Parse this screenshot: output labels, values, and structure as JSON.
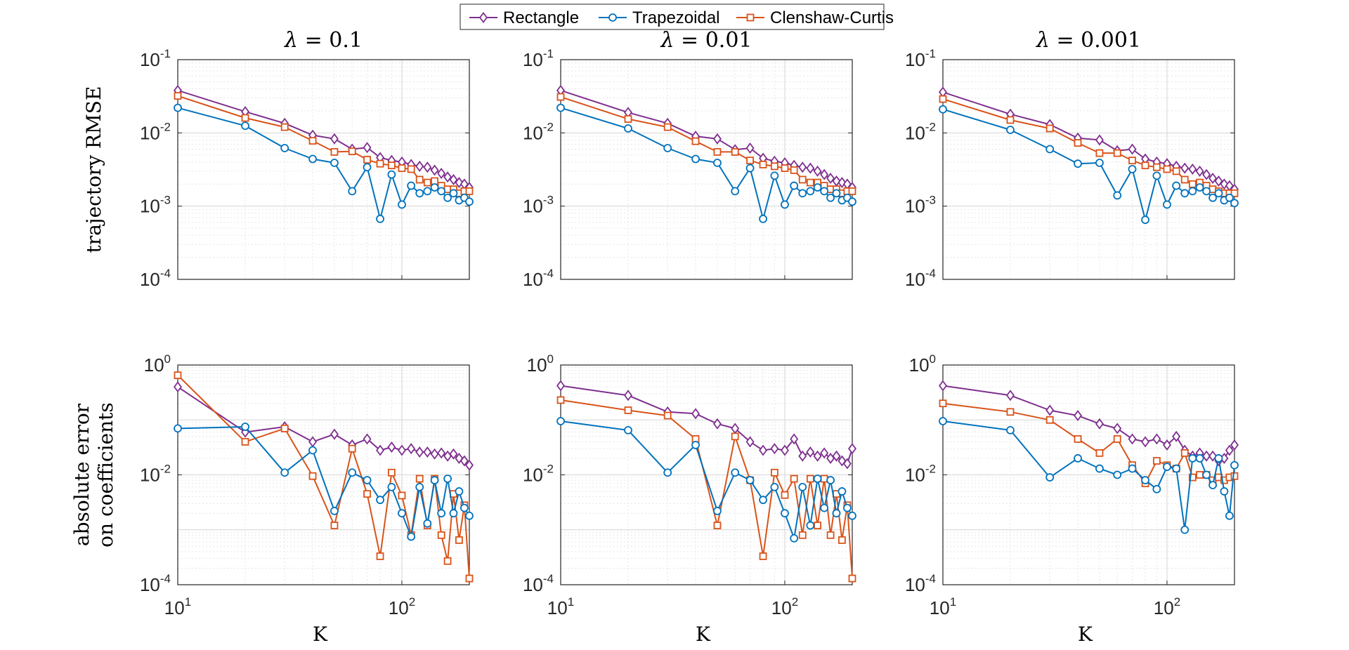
{
  "legend": {
    "entries": [
      {
        "name": "Rectangle",
        "color": "#7E2F8E",
        "marker": "diamond"
      },
      {
        "name": "Trapezoidal",
        "color": "#0072BD",
        "marker": "circle"
      },
      {
        "name": "Clenshaw-Curtis",
        "color": "#D95319",
        "marker": "square"
      }
    ]
  },
  "chart_data": [
    {
      "type": "line",
      "scale": "loglog",
      "title_var": "λ",
      "title_rest": " = 0.1",
      "ylabel_lines": [
        "trajectory RMSE"
      ],
      "xlabel": "",
      "ylim": [
        0.0001,
        0.1
      ],
      "yticks": [
        {
          "base": "10",
          "exp": "-1",
          "v": 0.1
        },
        {
          "base": "10",
          "exp": "-2",
          "v": 0.01
        },
        {
          "base": "10",
          "exp": "-3",
          "v": 0.001
        },
        {
          "base": "10",
          "exp": "-4",
          "v": 0.0001
        }
      ],
      "xticks": [],
      "x": [
        10,
        20,
        30,
        40,
        50,
        60,
        70,
        80,
        90,
        100,
        110,
        120,
        130,
        140,
        150,
        160,
        170,
        180,
        190,
        200
      ],
      "series": [
        {
          "name": "Rectangle",
          "values": [
            0.038,
            0.0195,
            0.0135,
            0.0093,
            0.0083,
            0.006,
            0.0063,
            0.0046,
            0.0042,
            0.004,
            0.0037,
            0.0035,
            0.0034,
            0.0031,
            0.0028,
            0.0025,
            0.0023,
            0.0021,
            0.002,
            0.0018
          ]
        },
        {
          "name": "Trapezoidal",
          "values": [
            0.022,
            0.0125,
            0.0062,
            0.0044,
            0.0039,
            0.0016,
            0.0034,
            0.00067,
            0.0027,
            0.00105,
            0.0019,
            0.0015,
            0.0016,
            0.0018,
            0.0016,
            0.0013,
            0.0015,
            0.0012,
            0.0013,
            0.00115
          ]
        },
        {
          "name": "Clenshaw-Curtis",
          "values": [
            0.032,
            0.016,
            0.012,
            0.0078,
            0.0055,
            0.0056,
            0.0043,
            0.0038,
            0.0036,
            0.0033,
            0.0032,
            0.0023,
            0.0021,
            0.0022,
            0.0019,
            0.0017,
            0.0017,
            0.0015,
            0.0016,
            0.0016
          ]
        }
      ]
    },
    {
      "type": "line",
      "scale": "loglog",
      "title_var": "λ",
      "title_rest": " = 0.01",
      "ylabel_lines": [],
      "xlabel": "",
      "ylim": [
        0.0001,
        0.1
      ],
      "yticks": [
        {
          "base": "10",
          "exp": "-1",
          "v": 0.1
        },
        {
          "base": "10",
          "exp": "-2",
          "v": 0.01
        },
        {
          "base": "10",
          "exp": "-3",
          "v": 0.001
        },
        {
          "base": "10",
          "exp": "-4",
          "v": 0.0001
        }
      ],
      "xticks": [],
      "x": [
        10,
        20,
        30,
        40,
        50,
        60,
        70,
        80,
        90,
        100,
        110,
        120,
        130,
        140,
        150,
        160,
        170,
        180,
        190,
        200
      ],
      "series": [
        {
          "name": "Rectangle",
          "values": [
            0.038,
            0.019,
            0.0135,
            0.009,
            0.0083,
            0.0059,
            0.0062,
            0.0045,
            0.0041,
            0.0039,
            0.0036,
            0.0034,
            0.0033,
            0.003,
            0.0027,
            0.0024,
            0.0022,
            0.0021,
            0.002,
            0.0018
          ]
        },
        {
          "name": "Trapezoidal",
          "values": [
            0.022,
            0.0115,
            0.0062,
            0.0044,
            0.0039,
            0.0016,
            0.0033,
            0.00067,
            0.0026,
            0.00105,
            0.0019,
            0.0015,
            0.0016,
            0.0018,
            0.0016,
            0.0013,
            0.0015,
            0.0012,
            0.0013,
            0.00115
          ]
        },
        {
          "name": "Clenshaw-Curtis",
          "values": [
            0.031,
            0.0155,
            0.012,
            0.0077,
            0.0055,
            0.0055,
            0.0042,
            0.0037,
            0.0035,
            0.0033,
            0.0031,
            0.0023,
            0.0021,
            0.0021,
            0.0019,
            0.0017,
            0.0017,
            0.0015,
            0.0016,
            0.0016
          ]
        }
      ]
    },
    {
      "type": "line",
      "scale": "loglog",
      "title_var": "λ",
      "title_rest": " = 0.001",
      "ylabel_lines": [],
      "xlabel": "",
      "ylim": [
        0.0001,
        0.1
      ],
      "yticks": [
        {
          "base": "10",
          "exp": "-1",
          "v": 0.1
        },
        {
          "base": "10",
          "exp": "-2",
          "v": 0.01
        },
        {
          "base": "10",
          "exp": "-3",
          "v": 0.001
        },
        {
          "base": "10",
          "exp": "-4",
          "v": 0.0001
        }
      ],
      "xticks": [],
      "x": [
        10,
        20,
        30,
        40,
        50,
        60,
        70,
        80,
        90,
        100,
        110,
        120,
        130,
        140,
        150,
        160,
        170,
        180,
        190,
        200
      ],
      "series": [
        {
          "name": "Rectangle",
          "values": [
            0.036,
            0.018,
            0.013,
            0.0085,
            0.008,
            0.0057,
            0.006,
            0.0044,
            0.004,
            0.0038,
            0.0035,
            0.0033,
            0.0032,
            0.003,
            0.0027,
            0.0024,
            0.0022,
            0.002,
            0.0019,
            0.0017
          ]
        },
        {
          "name": "Trapezoidal",
          "values": [
            0.021,
            0.011,
            0.006,
            0.0038,
            0.0039,
            0.0014,
            0.0032,
            0.00065,
            0.0026,
            0.00105,
            0.0019,
            0.0015,
            0.0016,
            0.0018,
            0.0016,
            0.0013,
            0.0015,
            0.0012,
            0.0013,
            0.0011
          ]
        },
        {
          "name": "Clenshaw-Curtis",
          "values": [
            0.029,
            0.015,
            0.0115,
            0.0073,
            0.0053,
            0.0053,
            0.0042,
            0.0036,
            0.0034,
            0.0032,
            0.003,
            0.0023,
            0.002,
            0.0021,
            0.0019,
            0.0017,
            0.0016,
            0.0015,
            0.0015,
            0.0015
          ]
        }
      ]
    },
    {
      "type": "line",
      "scale": "loglog",
      "title_var": "",
      "title_rest": "",
      "ylabel_lines": [
        "absolute error",
        "on coefficients"
      ],
      "xlabel": "K",
      "ylim": [
        0.0001,
        1
      ],
      "yticks": [
        {
          "base": "10",
          "exp": "0",
          "v": 1
        },
        {
          "base": "10",
          "exp": "-2",
          "v": 0.01
        },
        {
          "base": "10",
          "exp": "-4",
          "v": 0.0001
        }
      ],
      "xticks": [
        {
          "base": "10",
          "exp": "1",
          "v": 10
        },
        {
          "base": "10",
          "exp": "2",
          "v": 100
        }
      ],
      "x": [
        10,
        20,
        30,
        40,
        50,
        60,
        70,
        80,
        90,
        100,
        110,
        120,
        130,
        140,
        150,
        160,
        170,
        180,
        190,
        200
      ],
      "series": [
        {
          "name": "Rectangle",
          "values": [
            0.4,
            0.06,
            0.075,
            0.04,
            0.055,
            0.035,
            0.045,
            0.028,
            0.032,
            0.028,
            0.03,
            0.026,
            0.026,
            0.024,
            0.025,
            0.022,
            0.024,
            0.02,
            0.018,
            0.015
          ]
        },
        {
          "name": "Trapezoidal",
          "values": [
            0.07,
            0.075,
            0.011,
            0.028,
            0.0022,
            0.011,
            0.008,
            0.0035,
            0.006,
            0.002,
            0.00075,
            0.006,
            0.0013,
            0.008,
            0.002,
            0.0085,
            0.002,
            0.005,
            0.0025,
            0.0018
          ]
        },
        {
          "name": "Clenshaw-Curtis",
          "values": [
            0.65,
            0.04,
            0.07,
            0.0095,
            0.0012,
            0.03,
            0.0045,
            0.00033,
            0.011,
            0.0042,
            0.0008,
            0.0085,
            0.0012,
            0.0085,
            0.0008,
            0.00027,
            0.0045,
            0.00065,
            0.0028,
            0.00013
          ]
        }
      ]
    },
    {
      "type": "line",
      "scale": "loglog",
      "title_var": "",
      "title_rest": "",
      "ylabel_lines": [],
      "xlabel": "K",
      "ylim": [
        0.0001,
        1
      ],
      "yticks": [
        {
          "base": "10",
          "exp": "0",
          "v": 1
        },
        {
          "base": "10",
          "exp": "-2",
          "v": 0.01
        },
        {
          "base": "10",
          "exp": "-4",
          "v": 0.0001
        }
      ],
      "xticks": [
        {
          "base": "10",
          "exp": "1",
          "v": 10
        },
        {
          "base": "10",
          "exp": "2",
          "v": 100
        }
      ],
      "x": [
        10,
        20,
        30,
        40,
        50,
        60,
        70,
        80,
        90,
        100,
        110,
        120,
        130,
        140,
        150,
        160,
        170,
        180,
        190,
        200
      ],
      "series": [
        {
          "name": "Rectangle",
          "values": [
            0.42,
            0.28,
            0.14,
            0.13,
            0.085,
            0.07,
            0.04,
            0.028,
            0.03,
            0.028,
            0.045,
            0.022,
            0.026,
            0.022,
            0.025,
            0.02,
            0.022,
            0.018,
            0.016,
            0.03
          ]
        },
        {
          "name": "Trapezoidal",
          "values": [
            0.095,
            0.065,
            0.011,
            0.035,
            0.0022,
            0.011,
            0.008,
            0.0035,
            0.006,
            0.002,
            0.0007,
            0.006,
            0.0012,
            0.0085,
            0.0025,
            0.008,
            0.002,
            0.005,
            0.0025,
            0.0018
          ]
        },
        {
          "name": "Clenshaw-Curtis",
          "values": [
            0.23,
            0.15,
            0.12,
            0.045,
            0.0012,
            0.05,
            0.008,
            0.00033,
            0.011,
            0.0043,
            0.0085,
            0.0008,
            0.0085,
            0.0012,
            0.0085,
            0.0008,
            0.0045,
            0.00065,
            0.0028,
            0.00013
          ]
        }
      ]
    },
    {
      "type": "line",
      "scale": "loglog",
      "title_var": "",
      "title_rest": "",
      "ylabel_lines": [],
      "xlabel": "K",
      "ylim": [
        0.0001,
        1
      ],
      "yticks": [
        {
          "base": "10",
          "exp": "0",
          "v": 1
        },
        {
          "base": "10",
          "exp": "-2",
          "v": 0.01
        },
        {
          "base": "10",
          "exp": "-4",
          "v": 0.0001
        }
      ],
      "xticks": [
        {
          "base": "10",
          "exp": "1",
          "v": 10
        },
        {
          "base": "10",
          "exp": "2",
          "v": 100
        }
      ],
      "x": [
        10,
        20,
        30,
        40,
        50,
        60,
        70,
        80,
        90,
        100,
        110,
        120,
        130,
        140,
        150,
        160,
        170,
        180,
        190,
        200
      ],
      "series": [
        {
          "name": "Rectangle",
          "values": [
            0.42,
            0.28,
            0.15,
            0.12,
            0.085,
            0.07,
            0.045,
            0.04,
            0.045,
            0.035,
            0.05,
            0.028,
            0.022,
            0.025,
            0.022,
            0.022,
            0.018,
            0.02,
            0.028,
            0.035
          ]
        },
        {
          "name": "Trapezoidal",
          "values": [
            0.095,
            0.065,
            0.009,
            0.02,
            0.013,
            0.01,
            0.013,
            0.008,
            0.0055,
            0.014,
            0.013,
            0.001,
            0.02,
            0.02,
            0.01,
            0.0065,
            0.02,
            0.005,
            0.0018,
            0.015
          ]
        },
        {
          "name": "Clenshaw-Curtis",
          "values": [
            0.2,
            0.14,
            0.1,
            0.045,
            0.025,
            0.045,
            0.015,
            0.007,
            0.018,
            0.015,
            0.013,
            0.025,
            0.009,
            0.01,
            0.01,
            0.008,
            0.009,
            0.008,
            0.009,
            0.0095
          ]
        }
      ]
    }
  ]
}
